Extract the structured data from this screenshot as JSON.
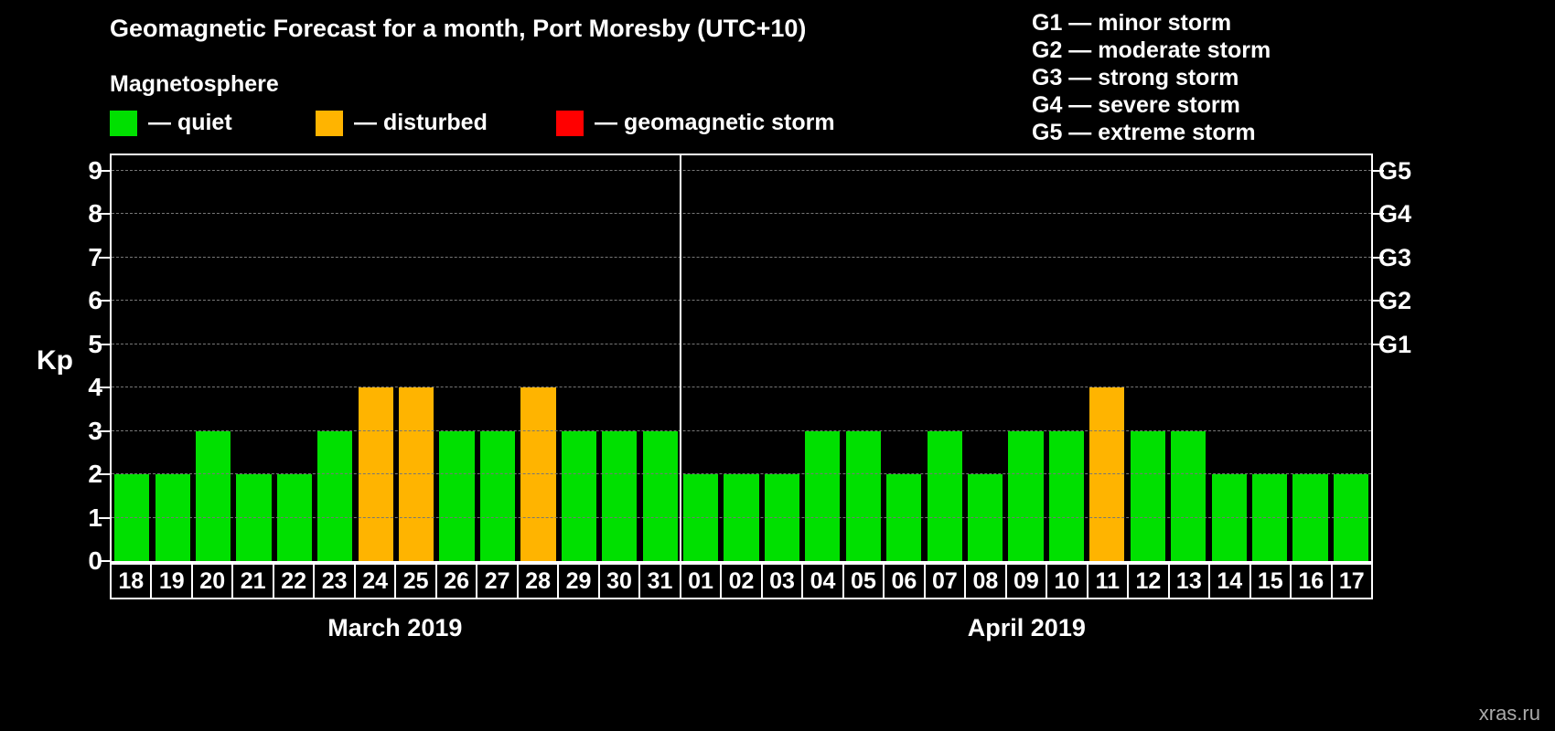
{
  "title": "Geomagnetic Forecast for a month, Port Moresby (UTC+10)",
  "subtitle": "Magnetosphere",
  "legend": {
    "items": [
      {
        "id": "quiet",
        "label": "— quiet",
        "color": "#00e000"
      },
      {
        "id": "disturbed",
        "label": "— disturbed",
        "color": "#ffb400"
      },
      {
        "id": "storm",
        "label": "— geomagnetic storm",
        "color": "#ff0000"
      }
    ]
  },
  "g_legend": [
    "G1 — minor storm",
    "G2 — moderate storm",
    "G3 — strong storm",
    "G4 — severe storm",
    "G5 — extreme storm"
  ],
  "y_axis": {
    "label": "Kp",
    "ticks": [
      0,
      1,
      2,
      3,
      4,
      5,
      6,
      7,
      8,
      9
    ]
  },
  "right_axis": {
    "ticks": [
      {
        "label": "G1",
        "kp": 5
      },
      {
        "label": "G2",
        "kp": 6
      },
      {
        "label": "G3",
        "kp": 7
      },
      {
        "label": "G4",
        "kp": 8
      },
      {
        "label": "G5",
        "kp": 9
      }
    ]
  },
  "chart_data": {
    "type": "bar",
    "title": "Geomagnetic Forecast for a month, Port Moresby (UTC+10)",
    "ylabel": "Kp",
    "ylim": [
      0,
      9
    ],
    "grid": "horizontal-dashed",
    "legend_position": "top",
    "colors": {
      "quiet": "#00e000",
      "disturbed": "#ffb400",
      "storm": "#ff0000"
    },
    "months": [
      {
        "label": "March 2019",
        "days": [
          "18",
          "19",
          "20",
          "21",
          "22",
          "23",
          "24",
          "25",
          "26",
          "27",
          "28",
          "29",
          "30",
          "31"
        ],
        "values": [
          2,
          2,
          3,
          2,
          2,
          3,
          4,
          4,
          3,
          3,
          4,
          3,
          3,
          3
        ],
        "statuses": [
          "quiet",
          "quiet",
          "quiet",
          "quiet",
          "quiet",
          "quiet",
          "disturbed",
          "disturbed",
          "quiet",
          "quiet",
          "disturbed",
          "quiet",
          "quiet",
          "quiet"
        ]
      },
      {
        "label": "April 2019",
        "days": [
          "01",
          "02",
          "03",
          "04",
          "05",
          "06",
          "07",
          "08",
          "09",
          "10",
          "11",
          "12",
          "13",
          "14",
          "15",
          "16",
          "17"
        ],
        "values": [
          2,
          2,
          2,
          3,
          3,
          2,
          3,
          2,
          3,
          3,
          4,
          3,
          3,
          2,
          2,
          2,
          2
        ],
        "statuses": [
          "quiet",
          "quiet",
          "quiet",
          "quiet",
          "quiet",
          "quiet",
          "quiet",
          "quiet",
          "quiet",
          "quiet",
          "disturbed",
          "quiet",
          "quiet",
          "quiet",
          "quiet",
          "quiet",
          "quiet"
        ]
      }
    ]
  },
  "watermark": "xras.ru"
}
